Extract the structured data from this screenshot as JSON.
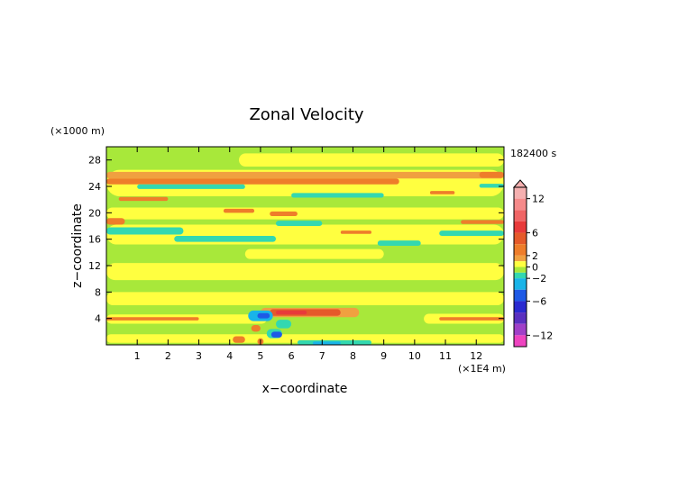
{
  "chart_data": {
    "type": "heatmap",
    "title": "Zonal Velocity",
    "xlabel": "x−coordinate",
    "ylabel": "z−coordinate",
    "x_unit": "(×1E4 m)",
    "y_unit": "(×1000 m)",
    "time_label": "182400 s",
    "xlim": [
      0,
      12.9
    ],
    "ylim": [
      0,
      30
    ],
    "x_ticks": [
      "1",
      "2",
      "3",
      "4",
      "5",
      "6",
      "7",
      "8",
      "9",
      "10",
      "11",
      "12"
    ],
    "y_ticks": [
      "4",
      "8",
      "12",
      "16",
      "20",
      "24",
      "28"
    ],
    "colorbar": {
      "ticks": [
        "12",
        "6",
        "2",
        "0",
        "−2",
        "−6",
        "−12"
      ],
      "levels": [
        {
          "from": 12,
          "to": 14,
          "color": "#f5b0b0"
        },
        {
          "from": 10,
          "to": 12,
          "color": "#f58a8a"
        },
        {
          "from": 8,
          "to": 10,
          "color": "#f06565"
        },
        {
          "from": 6,
          "to": 8,
          "color": "#e83a3a"
        },
        {
          "from": 4,
          "to": 6,
          "color": "#e55a2a"
        },
        {
          "from": 2,
          "to": 4,
          "color": "#ee7d2a"
        },
        {
          "from": 1,
          "to": 2,
          "color": "#f0a040"
        },
        {
          "from": 0,
          "to": 1,
          "color": "#ffff40"
        },
        {
          "from": -1,
          "to": 0,
          "color": "#a8e83a"
        },
        {
          "from": -2,
          "to": -1,
          "color": "#33d8b0"
        },
        {
          "from": -4,
          "to": -2,
          "color": "#19b4e8"
        },
        {
          "from": -6,
          "to": -4,
          "color": "#1e5ae6"
        },
        {
          "from": -8,
          "to": -6,
          "color": "#2a2ad0"
        },
        {
          "from": -10,
          "to": -8,
          "color": "#5a30c0"
        },
        {
          "from": -12,
          "to": -10,
          "color": "#a040c8"
        },
        {
          "from": -14,
          "to": -12,
          "color": "#ee44c0"
        }
      ]
    },
    "background_value": -0.5,
    "background_color": "#a8e83a",
    "bands": [
      {
        "x": [
          0.0,
          12.9
        ],
        "z": [
          0.3,
          1.6
        ],
        "v": 0.5
      },
      {
        "x": [
          0.0,
          5.2
        ],
        "z": [
          3.2,
          4.6
        ],
        "v": 0.5
      },
      {
        "x": [
          0.0,
          3.0
        ],
        "z": [
          3.7,
          4.2
        ],
        "v": 3
      },
      {
        "x": [
          10.3,
          12.9
        ],
        "z": [
          3.2,
          4.7
        ],
        "v": 0.5
      },
      {
        "x": [
          10.8,
          12.9
        ],
        "z": [
          3.7,
          4.2
        ],
        "v": 3
      },
      {
        "x": [
          0.0,
          12.9
        ],
        "z": [
          6.0,
          8.0
        ],
        "v": 0.5
      },
      {
        "x": [
          0.0,
          12.9
        ],
        "z": [
          9.8,
          12.4
        ],
        "v": 0.5
      },
      {
        "x": [
          4.5,
          9.0
        ],
        "z": [
          13.0,
          14.5
        ],
        "v": 0.5
      },
      {
        "x": [
          0.0,
          12.9
        ],
        "z": [
          15.2,
          18.2
        ],
        "v": 0.5
      },
      {
        "x": [
          0.0,
          12.9
        ],
        "z": [
          19.0,
          20.8
        ],
        "v": 0.5
      },
      {
        "x": [
          0.0,
          12.9
        ],
        "z": [
          22.5,
          26.5
        ],
        "v": 0.5
      },
      {
        "x": [
          4.3,
          12.9
        ],
        "z": [
          27.0,
          29.0
        ],
        "v": 0.5
      },
      {
        "x": [
          0.0,
          2.5
        ],
        "z": [
          16.7,
          17.8
        ],
        "v": -1.5
      },
      {
        "x": [
          2.2,
          5.5
        ],
        "z": [
          15.6,
          16.5
        ],
        "v": -1.5
      },
      {
        "x": [
          5.5,
          7.0
        ],
        "z": [
          18.0,
          18.8
        ],
        "v": -1.5
      },
      {
        "x": [
          8.8,
          10.2
        ],
        "z": [
          15.0,
          15.8
        ],
        "v": -1.5
      },
      {
        "x": [
          10.8,
          12.9
        ],
        "z": [
          16.5,
          17.3
        ],
        "v": -1.5
      },
      {
        "x": [
          0.0,
          12.9
        ],
        "z": [
          25.2,
          26.2
        ],
        "v": 1.5
      },
      {
        "x": [
          0.0,
          9.5
        ],
        "z": [
          24.3,
          25.2
        ],
        "v": 3
      },
      {
        "x": [
          1.0,
          4.5
        ],
        "z": [
          23.6,
          24.3
        ],
        "v": -1.5
      },
      {
        "x": [
          6.0,
          9.0
        ],
        "z": [
          22.3,
          23.0
        ],
        "v": -1.5
      },
      {
        "x": [
          0.4,
          2.0
        ],
        "z": [
          21.8,
          22.4
        ],
        "v": 3
      },
      {
        "x": [
          12.1,
          12.9
        ],
        "z": [
          25.3,
          26.2
        ],
        "v": 3
      },
      {
        "x": [
          12.1,
          12.9
        ],
        "z": [
          23.8,
          24.4
        ],
        "v": -1.5
      },
      {
        "x": [
          0.0,
          0.6
        ],
        "z": [
          18.2,
          19.2
        ],
        "v": 3
      },
      {
        "x": [
          11.5,
          12.9
        ],
        "z": [
          18.3,
          18.9
        ],
        "v": 3
      },
      {
        "x": [
          3.8,
          4.8
        ],
        "z": [
          20.0,
          20.6
        ],
        "v": 3
      },
      {
        "x": [
          10.5,
          11.3
        ],
        "z": [
          22.8,
          23.3
        ],
        "v": 3
      },
      {
        "x": [
          7.6,
          8.6
        ],
        "z": [
          16.8,
          17.3
        ],
        "v": 3
      },
      {
        "x": [
          5.3,
          6.2
        ],
        "z": [
          19.5,
          20.2
        ],
        "v": 3
      },
      {
        "x": [
          5.0,
          8.2
        ],
        "z": [
          4.2,
          5.6
        ],
        "v": 1.5
      },
      {
        "x": [
          5.3,
          7.6
        ],
        "z": [
          4.4,
          5.4
        ],
        "v": 4
      },
      {
        "x": [
          5.5,
          6.5
        ],
        "z": [
          4.6,
          5.2
        ],
        "v": 6
      },
      {
        "x": [
          4.6,
          5.4
        ],
        "z": [
          3.6,
          5.2
        ],
        "v": -2.5
      },
      {
        "x": [
          4.9,
          5.3
        ],
        "z": [
          4.0,
          4.8
        ],
        "v": -5
      },
      {
        "x": [
          5.2,
          5.7
        ],
        "z": [
          1.0,
          2.4
        ],
        "v": -1.5
      },
      {
        "x": [
          5.35,
          5.7
        ],
        "z": [
          1.1,
          2.0
        ],
        "v": -5
      },
      {
        "x": [
          5.5,
          6.0
        ],
        "z": [
          2.5,
          3.8
        ],
        "v": -1.5
      },
      {
        "x": [
          6.2,
          8.6
        ],
        "z": [
          0.0,
          0.7
        ],
        "v": -1.5
      },
      {
        "x": [
          6.7,
          7.6
        ],
        "z": [
          0.0,
          0.5
        ],
        "v": -3
      },
      {
        "x": [
          4.1,
          4.5
        ],
        "z": [
          0.3,
          1.3
        ],
        "v": 3
      },
      {
        "x": [
          4.9,
          5.1
        ],
        "z": [
          0.0,
          1.0
        ],
        "v": 3
      },
      {
        "x": [
          4.7,
          5.0
        ],
        "z": [
          2.0,
          3.0
        ],
        "v": 3
      }
    ]
  }
}
